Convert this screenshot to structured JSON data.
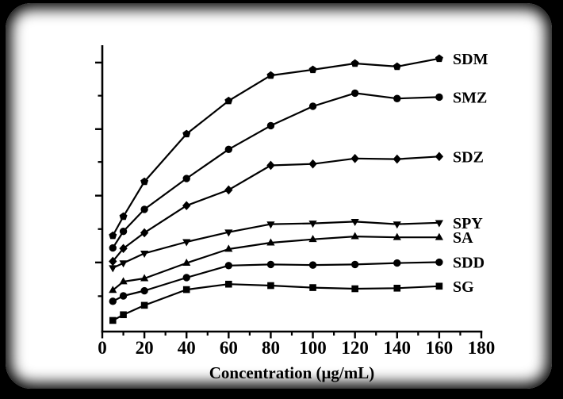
{
  "colors": {
    "frame": "#000000",
    "panel": "#ffffff",
    "plot": "#000000"
  },
  "chart_data": {
    "type": "line",
    "title": "",
    "xlabel": "Concentration (μg/mL)",
    "ylabel": "",
    "grid": false,
    "legend_position": "right-of-last-point",
    "xlim": [
      0,
      180
    ],
    "ylim": [
      0,
      100
    ],
    "y_axis_labels_visible": false,
    "x_ticks_major": [
      0,
      20,
      40,
      60,
      80,
      100,
      120,
      140,
      160,
      180
    ],
    "x_ticks_minor": [
      10,
      30,
      50,
      70,
      90,
      110,
      130,
      150,
      170
    ],
    "y_ticks_major": [
      24.2,
      47.6,
      70.9,
      94.2
    ],
    "y_ticks_minor": [
      12.4,
      35.9,
      59.4,
      82.6
    ],
    "x": [
      5,
      10,
      20,
      40,
      60,
      80,
      100,
      120,
      140,
      160
    ],
    "series": [
      {
        "name": "SDM",
        "marker": "pentagon",
        "values": [
          33.6,
          40.3,
          52.5,
          69.2,
          80.8,
          89.7,
          91.7,
          93.9,
          92.8,
          95.6
        ]
      },
      {
        "name": "SMZ",
        "marker": "circle",
        "values": [
          29.3,
          35.1,
          42.8,
          53.6,
          63.8,
          72.1,
          78.9,
          83.5,
          81.6,
          82.1
        ]
      },
      {
        "name": "SDZ",
        "marker": "diamond",
        "values": [
          24.6,
          29.1,
          34.6,
          44.1,
          49.6,
          58.2,
          58.7,
          60.6,
          60.4,
          61.3
        ]
      },
      {
        "name": "SPY",
        "marker": "triangle-down",
        "values": [
          22.3,
          24.0,
          27.4,
          31.4,
          34.8,
          37.6,
          37.9,
          38.5,
          37.6,
          38.1
        ]
      },
      {
        "name": "SA",
        "marker": "triangle-up",
        "values": [
          14.5,
          17.5,
          18.6,
          24.0,
          28.9,
          31.1,
          32.3,
          33.3,
          33.0,
          33.0
        ]
      },
      {
        "name": "SDD",
        "marker": "circle",
        "values": [
          10.6,
          12.5,
          14.3,
          18.9,
          23.1,
          23.5,
          23.3,
          23.5,
          24.0,
          24.3
        ]
      },
      {
        "name": "SG",
        "marker": "square",
        "values": [
          3.9,
          5.9,
          9.2,
          14.7,
          16.6,
          16.1,
          15.4,
          15.0,
          15.2,
          15.9
        ]
      }
    ]
  }
}
